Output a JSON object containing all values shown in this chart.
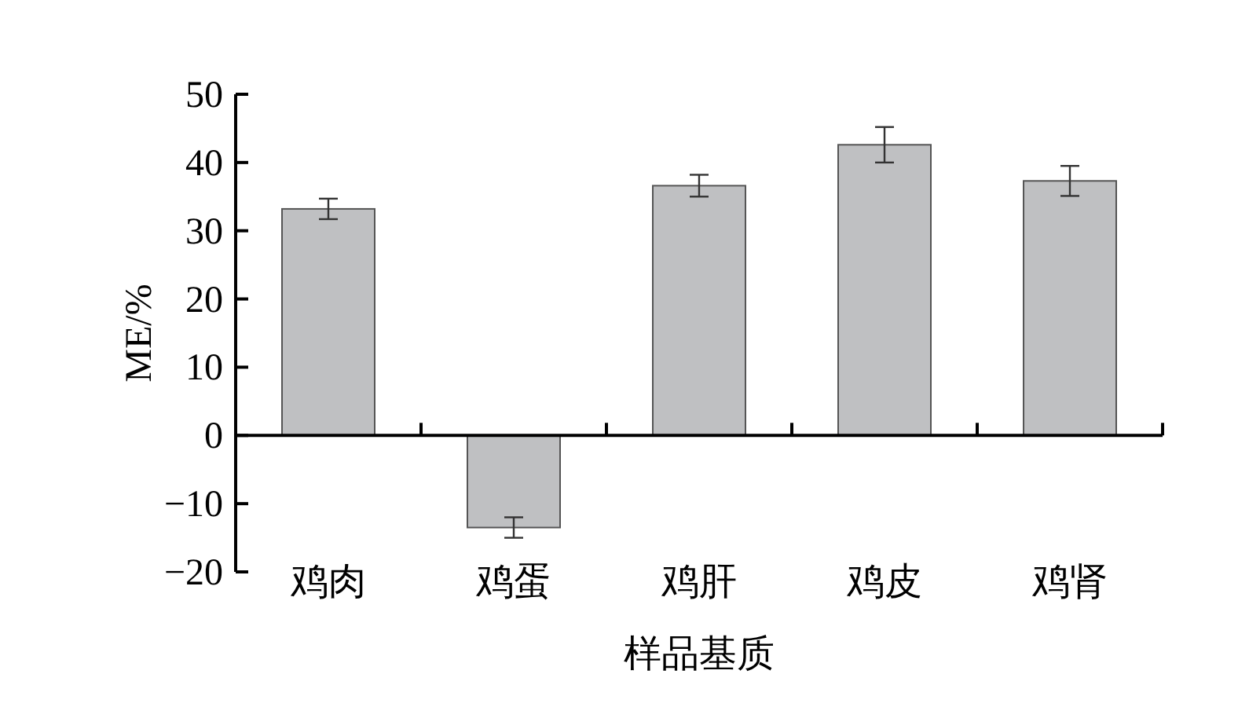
{
  "chart_data": {
    "type": "bar",
    "xlabel": "样品基质",
    "ylabel": "ME/%",
    "categories": [
      "鸡肉",
      "鸡蛋",
      "鸡肝",
      "鸡皮",
      "鸡肾"
    ],
    "values": [
      33.2,
      -13.5,
      36.6,
      42.6,
      37.3
    ],
    "errors": [
      1.5,
      1.5,
      1.6,
      2.6,
      2.2
    ],
    "color": "#bfc0c2",
    "ylim": [
      -20,
      50
    ],
    "yticks": [
      -20,
      -10,
      0,
      10,
      20,
      30,
      40,
      50
    ]
  }
}
